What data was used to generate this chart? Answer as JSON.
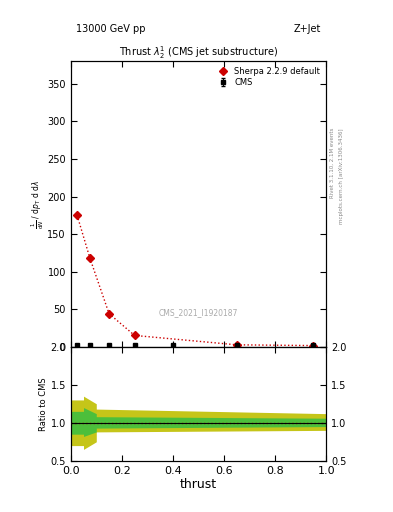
{
  "title": "Thrust $\\lambda_2^1$ (CMS jet substructure)",
  "top_left": "13000 GeV pp",
  "top_right": "Z+Jet",
  "xlabel": "thrust",
  "ylabel_ratio": "Ratio to CMS",
  "right_label_top": "Rivet 3.1.10, 2.1M events",
  "right_label_bot": "mcplots.cern.ch [arXiv:1306.3436]",
  "watermark": "CMS_2021_I1920187",
  "sherpa_x": [
    0.025,
    0.075,
    0.15,
    0.25,
    0.65,
    0.95
  ],
  "sherpa_y": [
    175.0,
    118.0,
    44.0,
    15.0,
    2.5,
    1.5
  ],
  "cms_x": [
    0.025,
    0.075,
    0.15,
    0.25,
    0.4,
    0.65,
    0.95
  ],
  "cms_y": [
    2.0,
    2.0,
    2.0,
    2.0,
    2.0,
    2.0,
    2.0
  ],
  "cms_yerr_lo": [
    0.3,
    0.3,
    0.3,
    0.3,
    0.3,
    0.3,
    0.3
  ],
  "cms_yerr_hi": [
    0.3,
    0.3,
    0.3,
    0.3,
    0.3,
    0.3,
    0.3
  ],
  "ratio_sherpa_x": [
    0.0,
    0.025,
    0.075,
    0.15,
    0.25,
    0.65,
    0.95,
    1.0
  ],
  "ratio_sherpa_y": [
    1.0,
    1.0,
    1.0,
    1.0,
    1.0,
    1.0,
    1.0,
    1.0
  ],
  "ylim_main": [
    0,
    380
  ],
  "ylim_ratio": [
    0.5,
    2.0
  ],
  "xlim": [
    0.0,
    1.0
  ],
  "yticks_main": [
    0,
    50,
    100,
    150,
    200,
    250,
    300,
    350
  ],
  "yticks_ratio": [
    0.5,
    1.0,
    1.5,
    2.0
  ],
  "legend_cms": "CMS",
  "legend_sherpa": "Sherpa 2.2.9 default",
  "sherpa_color": "#cc0000",
  "cms_color": "#000000",
  "green_color": "#3fbf3f",
  "yellow_color": "#bfbf00",
  "ylabel_parts": [
    "$\\mathrm{mathrm\\,d}^2\\!N$",
    "$\\mathrm{d}p_\\mathrm{T}\\,\\mathrm{d}\\lambda$"
  ]
}
